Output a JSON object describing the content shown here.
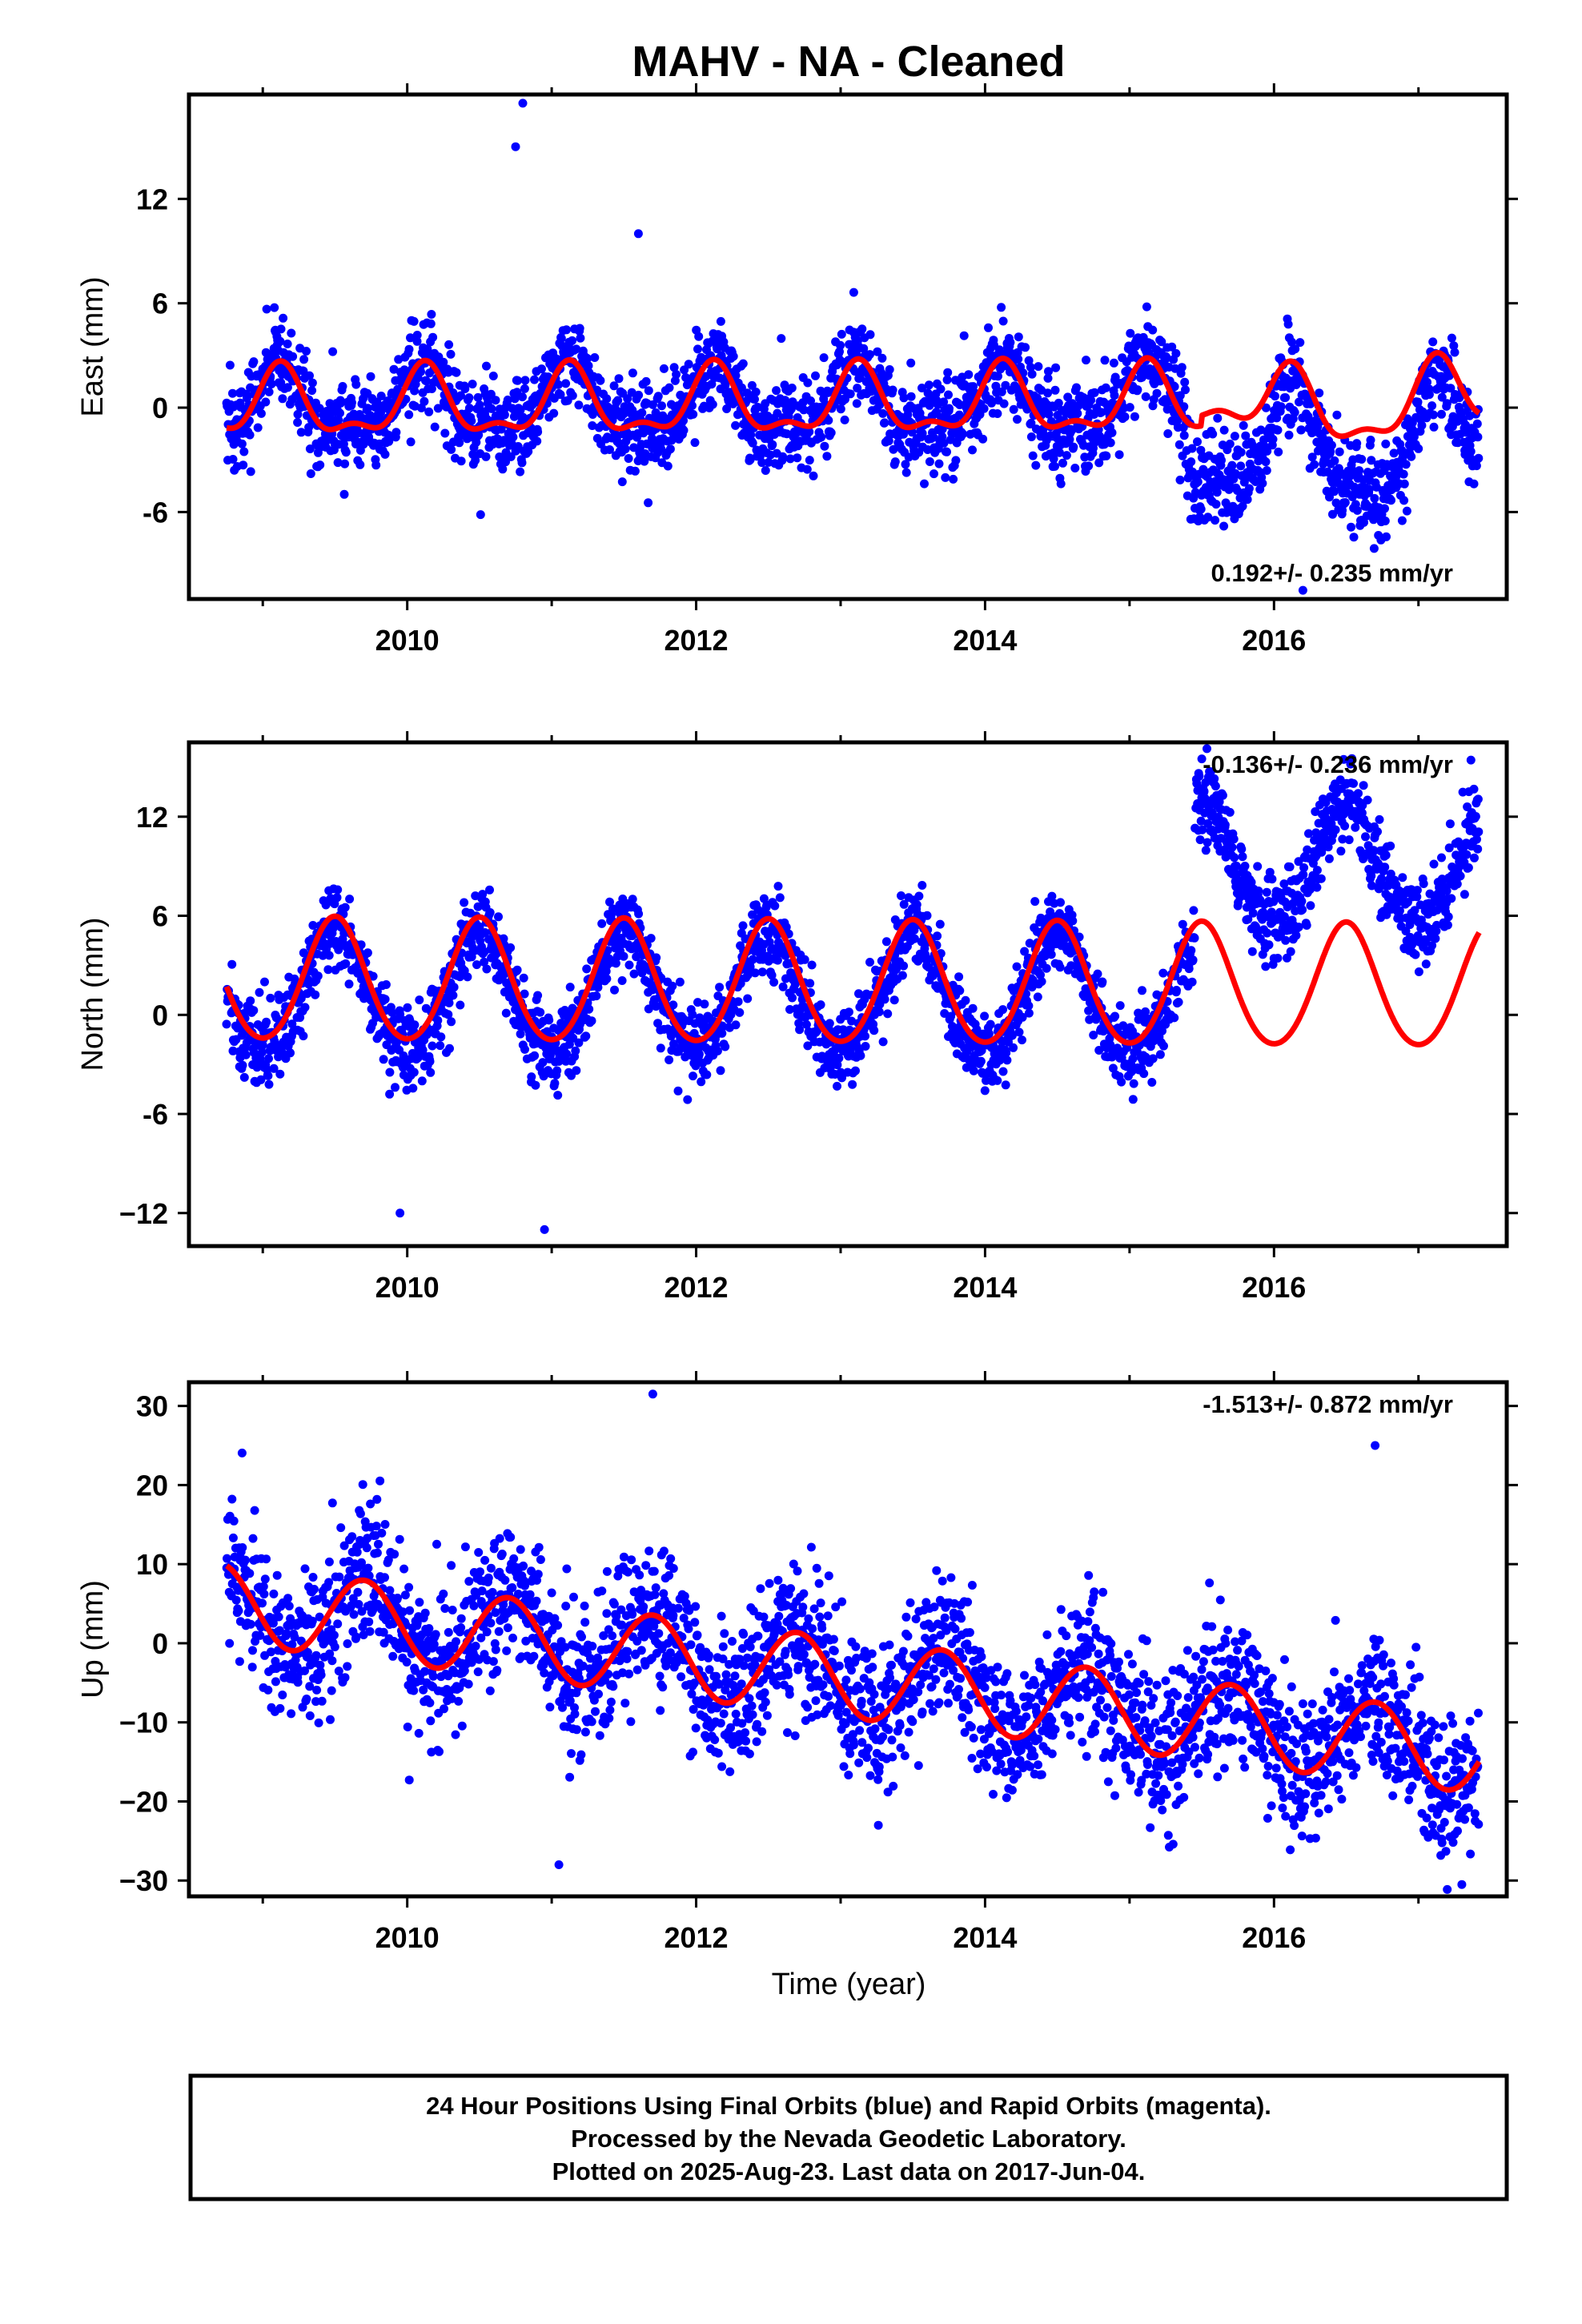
{
  "chart_data": {
    "title": "MAHV  - NA - Cleaned",
    "xlabel": "Time (year)",
    "type": "scatter",
    "xlim": [
      2008.5,
      2017.6
    ],
    "x_ticks": [
      2010,
      2012,
      2014,
      2016
    ],
    "x_tick_labels": [
      "2010",
      "2012",
      "2014",
      "2016"
    ],
    "colors": {
      "final_orbits": "#0000ff",
      "model_fit": "#ff0000"
    },
    "panels": [
      {
        "id": "east",
        "ylabel": "East (mm)",
        "ylim": [
          -11,
          18
        ],
        "y_ticks": [
          -6,
          0,
          6,
          12
        ],
        "y_tick_labels": [
          "-6",
          "0",
          "6",
          "12"
        ],
        "rate": "0.192+/- 0.235 mm/yr",
        "data_span": [
          2008.75,
          2017.42
        ],
        "model_fit_anchor": [
          [
            2008.75,
            -0.2
          ],
          [
            2009.6,
            2.0
          ],
          [
            2010.0,
            -2.8
          ],
          [
            2010.6,
            2.2
          ],
          [
            2011.6,
            2.8
          ],
          [
            2012.6,
            2.8
          ],
          [
            2013.6,
            3.0
          ],
          [
            2014.6,
            3.2
          ],
          [
            2015.6,
            3.2
          ],
          [
            2015.9,
            -1.8
          ],
          [
            2016.6,
            3.4
          ],
          [
            2017.0,
            -1.5
          ],
          [
            2017.42,
            1.0
          ]
        ],
        "outliers": [
          [
            2010.8,
            17.5
          ],
          [
            2010.75,
            15.0
          ],
          [
            2011.6,
            10.0
          ],
          [
            2016.2,
            -10.5
          ]
        ]
      },
      {
        "id": "north",
        "ylabel": "North (mm)",
        "ylim": [
          -14,
          16.5
        ],
        "y_ticks": [
          -12,
          -6,
          0,
          6,
          12
        ],
        "y_tick_labels": [
          "−12",
          "-6",
          "0",
          "6",
          "12"
        ],
        "rate": "-0.136+/- 0.236 mm/yr",
        "data_span": [
          2008.75,
          2017.42
        ],
        "model_fit_anchor": [
          [
            2008.75,
            0.5
          ],
          [
            2009.5,
            5.8
          ],
          [
            2010.0,
            -1.5
          ],
          [
            2010.5,
            5.8
          ],
          [
            2011.5,
            5.6
          ],
          [
            2012.5,
            5.4
          ],
          [
            2013.5,
            5.4
          ],
          [
            2014.5,
            5.2
          ],
          [
            2015.5,
            5.0
          ],
          [
            2016.0,
            -2.5
          ],
          [
            2016.5,
            5.0
          ],
          [
            2017.0,
            -2.6
          ],
          [
            2017.42,
            3.8
          ]
        ],
        "outliers": [
          [
            2009.95,
            -12.0
          ],
          [
            2010.95,
            -13.0
          ],
          [
            2015.5,
            15.5
          ],
          [
            2016.5,
            14.0
          ]
        ]
      },
      {
        "id": "up",
        "ylabel": "Up (mm)",
        "ylim": [
          -32,
          33
        ],
        "y_ticks": [
          -30,
          -20,
          -10,
          0,
          10,
          20,
          30
        ],
        "y_tick_labels": [
          "−30",
          "−20",
          "−10",
          "0",
          "10",
          "20",
          "30"
        ],
        "rate": "-1.513+/- 0.872 mm/yr",
        "data_span": [
          2008.75,
          2017.42
        ],
        "model_fit_anchor": [
          [
            2008.75,
            10.0
          ],
          [
            2009.2,
            0.5
          ],
          [
            2009.7,
            9.5
          ],
          [
            2010.2,
            -1.5
          ],
          [
            2010.7,
            8.0
          ],
          [
            2011.7,
            6.5
          ],
          [
            2012.7,
            5.0
          ],
          [
            2013.7,
            3.5
          ],
          [
            2014.7,
            2.0
          ],
          [
            2015.7,
            0.5
          ],
          [
            2016.2,
            -10.5
          ],
          [
            2016.7,
            -1.0
          ],
          [
            2017.25,
            -12.0
          ],
          [
            2017.42,
            -7.5
          ]
        ],
        "outliers": [
          [
            2011.05,
            -28.0
          ],
          [
            2011.7,
            31.5
          ],
          [
            2017.3,
            -30.5
          ],
          [
            2016.7,
            25.0
          ]
        ]
      }
    ]
  },
  "caption": {
    "line1": "24 Hour Positions Using Final Orbits (blue) and Rapid Orbits (magenta).",
    "line2": "Processed by the Nevada Geodetic Laboratory.",
    "line3": "Plotted on 2025-Aug-23. Last data on 2017-Jun-04."
  }
}
